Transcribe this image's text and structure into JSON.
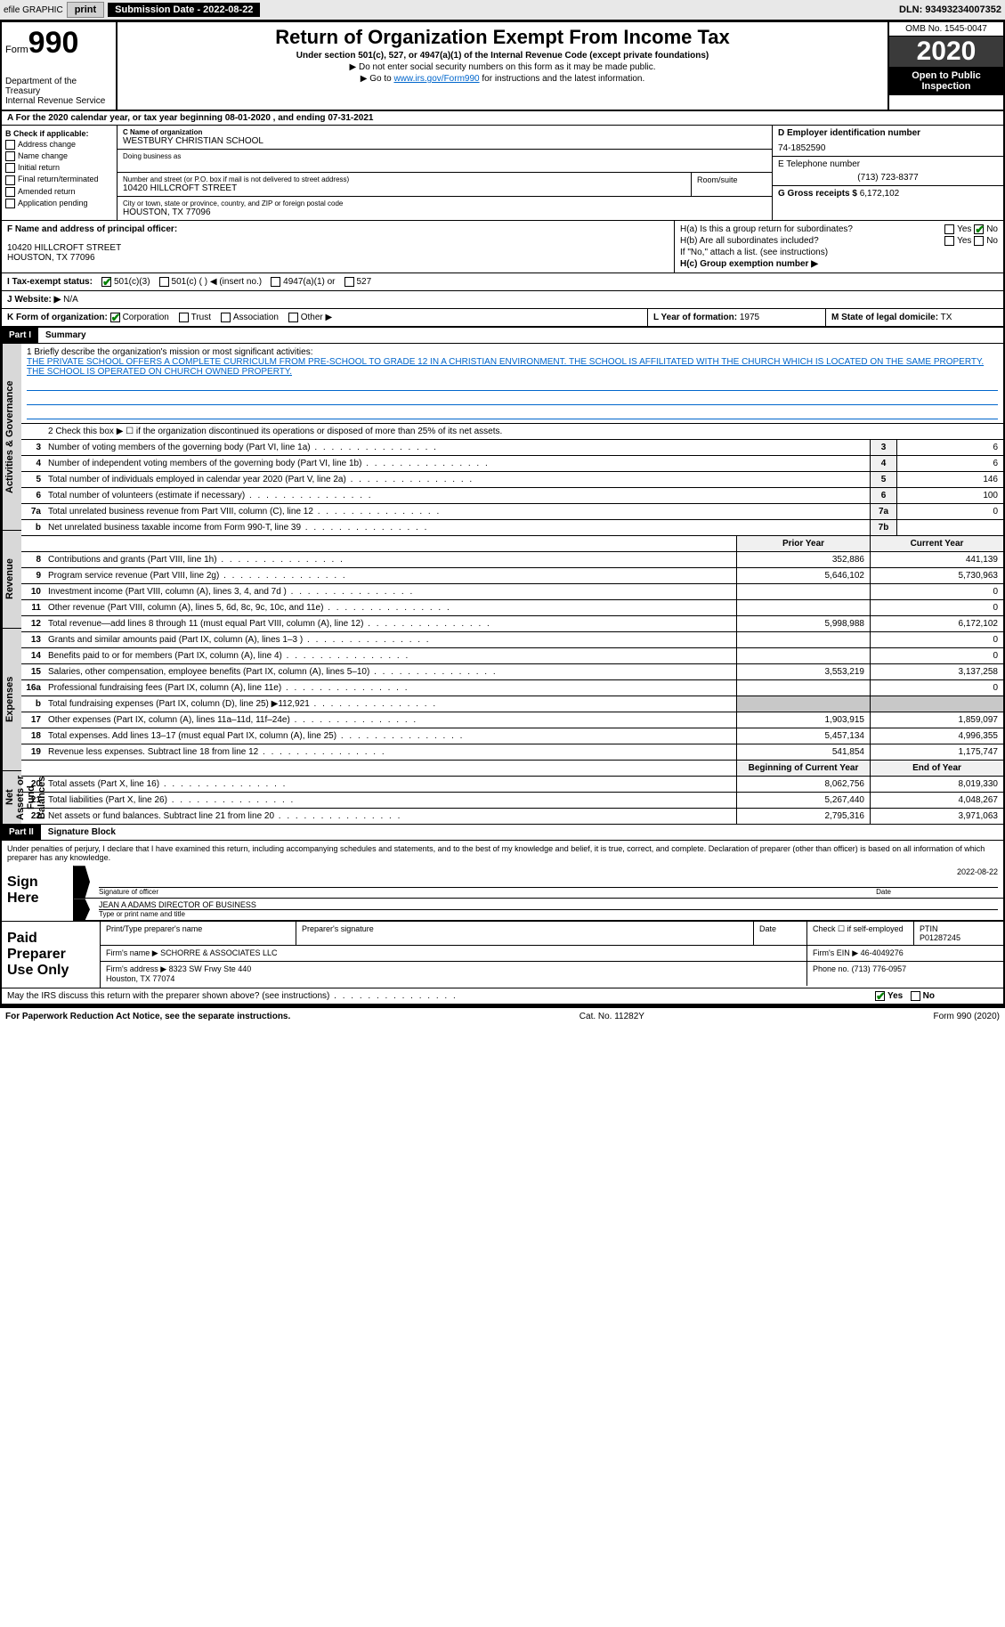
{
  "colors": {
    "link": "#0066cc",
    "checkmark": "#008000",
    "black": "#000000",
    "shade": "#c8c8c8",
    "section_bg": "#d8d8d8",
    "year_bg": "#3a3a3a"
  },
  "topbar": {
    "efile": "efile GRAPHIC",
    "print": "print",
    "submission": "Submission Date - 2022-08-22",
    "dln": "DLN: 93493234007352"
  },
  "header": {
    "form_prefix": "Form",
    "form_number": "990",
    "title": "Return of Organization Exempt From Income Tax",
    "subtitle": "Under section 501(c), 527, or 4947(a)(1) of the Internal Revenue Code (except private foundations)",
    "note1": "▶ Do not enter social security numbers on this form as it may be made public.",
    "note2_prefix": "▶ Go to ",
    "note2_link": "www.irs.gov/Form990",
    "note2_suffix": " for instructions and the latest information.",
    "dept": "Department of the Treasury\nInternal Revenue Service",
    "omb": "OMB No. 1545-0047",
    "year": "2020",
    "open": "Open to Public Inspection"
  },
  "line_a": "A For the 2020 calendar year, or tax year beginning 08-01-2020    , and ending 07-31-2021",
  "box_b": {
    "title": "B Check if applicable:",
    "opts": [
      "Address change",
      "Name change",
      "Initial return",
      "Final return/terminated",
      "Amended return",
      "Application pending"
    ]
  },
  "box_c": {
    "label_name": "C Name of organization",
    "org_name": "WESTBURY CHRISTIAN SCHOOL",
    "dba_label": "Doing business as",
    "addr_label": "Number and street (or P.O. box if mail is not delivered to street address)",
    "room_label": "Room/suite",
    "addr": "10420 HILLCROFT STREET",
    "city_label": "City or town, state or province, country, and ZIP or foreign postal code",
    "city": "HOUSTON, TX  77096"
  },
  "box_d": {
    "label": "D Employer identification number",
    "value": "74-1852590"
  },
  "box_e": {
    "label": "E Telephone number",
    "value": "(713) 723-8377"
  },
  "box_g": {
    "label": "G Gross receipts $",
    "value": "6,172,102"
  },
  "box_f": {
    "label": "F  Name and address of principal officer:",
    "addr1": "10420 HILLCROFT STREET",
    "addr2": "HOUSTON, TX  77096"
  },
  "box_h": {
    "ha": "H(a)  Is this a group return for subordinates?",
    "ha_yes": "Yes",
    "ha_no": "No",
    "hb": "H(b)  Are all subordinates included?",
    "hb_yes": "Yes",
    "hb_no": "No",
    "hb_note": "If \"No,\" attach a list. (see instructions)",
    "hc": "H(c)  Group exemption number ▶"
  },
  "box_i": {
    "label": "I   Tax-exempt status:",
    "o1": "501(c)(3)",
    "o2": "501(c) (   ) ◀ (insert no.)",
    "o3": "4947(a)(1) or",
    "o4": "527"
  },
  "box_j": {
    "label": "J   Website: ▶",
    "value": "N/A"
  },
  "box_k": {
    "label": "K Form of organization:",
    "o1": "Corporation",
    "o2": "Trust",
    "o3": "Association",
    "o4": "Other ▶"
  },
  "box_l": {
    "label": "L Year of formation:",
    "value": "1975"
  },
  "box_m": {
    "label": "M State of legal domicile:",
    "value": "TX"
  },
  "part1": {
    "hdr": "Part I",
    "title": "Summary",
    "line1_label": "1   Briefly describe the organization's mission or most significant activities:",
    "mission": "THE PRIVATE SCHOOL OFFERS A COMPLETE CURRICULM FROM PRE-SCHOOL TO GRADE 12 IN A CHRISTIAN ENVIRONMENT. THE SCHOOL IS AFFILITATED WITH THE CHURCH WHICH IS LOCATED ON THE SAME PROPERTY. THE SCHOOL IS OPERATED ON CHURCH OWNED PROPERTY.",
    "line2": "2   Check this box ▶ ☐  if the organization discontinued its operations or disposed of more than 25% of its net assets.",
    "vtab_gov": "Activities & Governance",
    "vtab_rev": "Revenue",
    "vtab_exp": "Expenses",
    "vtab_net": "Net Assets or Fund Balances",
    "gov_lines": [
      {
        "n": "3",
        "t": "Number of voting members of the governing body (Part VI, line 1a)",
        "b": "3",
        "v": "6"
      },
      {
        "n": "4",
        "t": "Number of independent voting members of the governing body (Part VI, line 1b)",
        "b": "4",
        "v": "6"
      },
      {
        "n": "5",
        "t": "Total number of individuals employed in calendar year 2020 (Part V, line 2a)",
        "b": "5",
        "v": "146"
      },
      {
        "n": "6",
        "t": "Total number of volunteers (estimate if necessary)",
        "b": "6",
        "v": "100"
      },
      {
        "n": "7a",
        "t": "Total unrelated business revenue from Part VIII, column (C), line 12",
        "b": "7a",
        "v": "0"
      },
      {
        "n": "b",
        "t": "Net unrelated business taxable income from Form 990-T, line 39",
        "b": "7b",
        "v": ""
      }
    ],
    "col_hdr": {
      "prior": "Prior Year",
      "current": "Current Year"
    },
    "rev_lines": [
      {
        "n": "8",
        "t": "Contributions and grants (Part VIII, line 1h)",
        "p": "352,886",
        "c": "441,139"
      },
      {
        "n": "9",
        "t": "Program service revenue (Part VIII, line 2g)",
        "p": "5,646,102",
        "c": "5,730,963"
      },
      {
        "n": "10",
        "t": "Investment income (Part VIII, column (A), lines 3, 4, and 7d )",
        "p": "",
        "c": "0"
      },
      {
        "n": "11",
        "t": "Other revenue (Part VIII, column (A), lines 5, 6d, 8c, 9c, 10c, and 11e)",
        "p": "",
        "c": "0"
      },
      {
        "n": "12",
        "t": "Total revenue—add lines 8 through 11 (must equal Part VIII, column (A), line 12)",
        "p": "5,998,988",
        "c": "6,172,102"
      }
    ],
    "exp_lines": [
      {
        "n": "13",
        "t": "Grants and similar amounts paid (Part IX, column (A), lines 1–3 )",
        "p": "",
        "c": "0"
      },
      {
        "n": "14",
        "t": "Benefits paid to or for members (Part IX, column (A), line 4)",
        "p": "",
        "c": "0"
      },
      {
        "n": "15",
        "t": "Salaries, other compensation, employee benefits (Part IX, column (A), lines 5–10)",
        "p": "3,553,219",
        "c": "3,137,258"
      },
      {
        "n": "16a",
        "t": "Professional fundraising fees (Part IX, column (A), line 11e)",
        "p": "",
        "c": "0"
      },
      {
        "n": "b",
        "t": "Total fundraising expenses (Part IX, column (D), line 25) ▶112,921",
        "p": "shade",
        "c": "shade"
      },
      {
        "n": "17",
        "t": "Other expenses (Part IX, column (A), lines 11a–11d, 11f–24e)",
        "p": "1,903,915",
        "c": "1,859,097"
      },
      {
        "n": "18",
        "t": "Total expenses. Add lines 13–17 (must equal Part IX, column (A), line 25)",
        "p": "5,457,134",
        "c": "4,996,355"
      },
      {
        "n": "19",
        "t": "Revenue less expenses. Subtract line 18 from line 12",
        "p": "541,854",
        "c": "1,175,747"
      }
    ],
    "net_hdr": {
      "begin": "Beginning of Current Year",
      "end": "End of Year"
    },
    "net_lines": [
      {
        "n": "20",
        "t": "Total assets (Part X, line 16)",
        "p": "8,062,756",
        "c": "8,019,330"
      },
      {
        "n": "21",
        "t": "Total liabilities (Part X, line 26)",
        "p": "5,267,440",
        "c": "4,048,267"
      },
      {
        "n": "22",
        "t": "Net assets or fund balances. Subtract line 21 from line 20",
        "p": "2,795,316",
        "c": "3,971,063"
      }
    ]
  },
  "part2": {
    "hdr": "Part II",
    "title": "Signature Block",
    "decl": "Under penalties of perjury, I declare that I have examined this return, including accompanying schedules and statements, and to the best of my knowledge and belief, it is true, correct, and complete. Declaration of preparer (other than officer) is based on all information of which preparer has any knowledge.",
    "sign_here": "Sign Here",
    "sig_date": "2022-08-22",
    "sig_officer_label": "Signature of officer",
    "sig_date_label": "Date",
    "sig_name": "JEAN A ADAMS  DIRECTOR OF BUSINESS",
    "sig_name_label": "Type or print name and title",
    "paid_label": "Paid Preparer Use Only",
    "prep_h1": "Print/Type preparer's name",
    "prep_h2": "Preparer's signature",
    "prep_h3": "Date",
    "prep_h4a": "Check ☐ if self-employed",
    "prep_h4b": "PTIN",
    "prep_ptin": "P01287245",
    "firm_name_label": "Firm's name      ▶",
    "firm_name": "SCHORRE & ASSOCIATES LLC",
    "firm_ein_label": "Firm's EIN ▶",
    "firm_ein": "46-4049276",
    "firm_addr_label": "Firm's address ▶",
    "firm_addr": "8323 SW Frwy Ste 440\nHouston, TX  77074",
    "firm_phone_label": "Phone no.",
    "firm_phone": "(713) 776-0957",
    "discuss": "May the IRS discuss this return with the preparer shown above? (see instructions)",
    "discuss_yes": "Yes",
    "discuss_no": "No"
  },
  "footer": {
    "left": "For Paperwork Reduction Act Notice, see the separate instructions.",
    "mid": "Cat. No. 11282Y",
    "right": "Form 990 (2020)"
  }
}
